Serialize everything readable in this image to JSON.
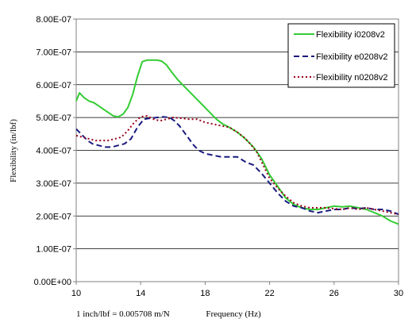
{
  "chart_data": {
    "type": "line",
    "title": "",
    "xlabel": "Frequency (Hz)",
    "ylabel": "Flexibility (in/lbf)",
    "note": "1 inch/lbf = 0.005708 m/N",
    "xlim": [
      10,
      30
    ],
    "ylim": [
      0,
      8e-07
    ],
    "x_ticks": [
      "10",
      "14",
      "18",
      "22",
      "26",
      "30"
    ],
    "x_tick_values": [
      10,
      14,
      18,
      22,
      26,
      30
    ],
    "y_ticks": [
      "0.00E+00",
      "1.00E-07",
      "2.00E-07",
      "3.00E-07",
      "4.00E-07",
      "5.00E-07",
      "6.00E-07",
      "7.00E-07",
      "8.00E-07"
    ],
    "y_tick_values": [
      0,
      1e-07,
      2e-07,
      3e-07,
      4e-07,
      5e-07,
      6e-07,
      7e-07,
      8e-07
    ],
    "grid": "horizontal",
    "legend_position": "top-right",
    "series": [
      {
        "name": "Flexibility i0208v2",
        "color": "#33cc33",
        "style": "solid",
        "x": [
          10,
          10.2,
          10.5,
          10.8,
          11.1,
          11.4,
          11.7,
          12.0,
          12.3,
          12.6,
          12.9,
          13.2,
          13.5,
          13.8,
          14.1,
          14.4,
          14.7,
          15.0,
          15.3,
          15.6,
          15.9,
          16.3,
          16.7,
          17.1,
          17.5,
          17.9,
          18.3,
          18.7,
          19.1,
          19.5,
          20.0,
          20.5,
          21.0,
          21.5,
          22.0,
          22.5,
          23.0,
          23.5,
          24.0,
          24.5,
          25.0,
          25.5,
          26.0,
          26.5,
          27.0,
          27.5,
          28.0,
          28.5,
          29.0,
          29.5,
          30
        ],
        "values": [
          5.5e-07,
          5.75e-07,
          5.6e-07,
          5.5e-07,
          5.45e-07,
          5.35e-07,
          5.25e-07,
          5.15e-07,
          5.05e-07,
          5.02e-07,
          5.1e-07,
          5.3e-07,
          5.7e-07,
          6.25e-07,
          6.7e-07,
          6.75e-07,
          6.75e-07,
          6.75e-07,
          6.72e-07,
          6.6e-07,
          6.4e-07,
          6.15e-07,
          5.95e-07,
          5.75e-07,
          5.55e-07,
          5.35e-07,
          5.15e-07,
          4.95e-07,
          4.8e-07,
          4.7e-07,
          4.55e-07,
          4.35e-07,
          4.1e-07,
          3.75e-07,
          3.25e-07,
          2.9e-07,
          2.55e-07,
          2.35e-07,
          2.25e-07,
          2.2e-07,
          2.2e-07,
          2.25e-07,
          2.3e-07,
          2.28e-07,
          2.3e-07,
          2.25e-07,
          2.2e-07,
          2.1e-07,
          2e-07,
          1.85e-07,
          1.75e-07
        ]
      },
      {
        "name": "Flexibility e0208v2",
        "color": "#1a1a80",
        "style": "dashed",
        "x": [
          10,
          10.3,
          10.7,
          11.0,
          11.4,
          11.8,
          12.2,
          12.6,
          13.0,
          13.4,
          13.8,
          14.2,
          14.6,
          15.0,
          15.4,
          15.8,
          16.1,
          16.4,
          16.7,
          17.0,
          17.3,
          17.6,
          18.0,
          18.5,
          19.0,
          19.5,
          20.0,
          20.5,
          21.0,
          21.5,
          22.0,
          22.5,
          23.0,
          23.5,
          24.0,
          24.5,
          25.0,
          25.5,
          26.0,
          26.5,
          27.0,
          27.5,
          28.0,
          28.5,
          29.0,
          29.5,
          30
        ],
        "values": [
          4.65e-07,
          4.5e-07,
          4.3e-07,
          4.2e-07,
          4.15e-07,
          4.1e-07,
          4.1e-07,
          4.15e-07,
          4.2e-07,
          4.35e-07,
          4.7e-07,
          4.95e-07,
          4.98e-07,
          5e-07,
          5.02e-07,
          5e-07,
          4.9e-07,
          4.75e-07,
          4.55e-07,
          4.35e-07,
          4.15e-07,
          4e-07,
          3.9e-07,
          3.85e-07,
          3.8e-07,
          3.8e-07,
          3.8e-07,
          3.65e-07,
          3.55e-07,
          3.3e-07,
          3e-07,
          2.7e-07,
          2.45e-07,
          2.3e-07,
          2.25e-07,
          2.15e-07,
          2.1e-07,
          2.15e-07,
          2.2e-07,
          2.2e-07,
          2.25e-07,
          2.22e-07,
          2.25e-07,
          2.2e-07,
          2.2e-07,
          2.15e-07,
          2.05e-07
        ]
      },
      {
        "name": "Flexibility n0208v2",
        "color": "#99001a",
        "style": "dotted",
        "x": [
          10,
          10.4,
          10.8,
          11.2,
          11.6,
          12.0,
          12.4,
          12.8,
          13.2,
          13.6,
          14.0,
          14.4,
          14.8,
          15.2,
          15.6,
          16.0,
          16.5,
          17.0,
          17.5,
          18.0,
          18.5,
          19.0,
          19.5,
          20.0,
          20.4,
          20.8,
          21.2,
          21.6,
          22.0,
          22.5,
          23.0,
          23.5,
          24.0,
          24.5,
          25.0,
          25.5,
          26.0,
          26.5,
          27.0,
          27.5,
          28.0,
          28.5,
          29.0,
          29.5,
          30
        ],
        "values": [
          4.45e-07,
          4.4e-07,
          4.35e-07,
          4.3e-07,
          4.3e-07,
          4.3e-07,
          4.35e-07,
          4.4e-07,
          4.6e-07,
          4.85e-07,
          5.02e-07,
          5.05e-07,
          4.95e-07,
          4.9e-07,
          4.95e-07,
          5e-07,
          4.98e-07,
          4.95e-07,
          4.95e-07,
          4.85e-07,
          4.8e-07,
          4.75e-07,
          4.7e-07,
          4.55e-07,
          4.4e-07,
          4.2e-07,
          3.95e-07,
          3.55e-07,
          3.15e-07,
          2.85e-07,
          2.6e-07,
          2.4e-07,
          2.3e-07,
          2.25e-07,
          2.25e-07,
          2.25e-07,
          2.22e-07,
          2.2e-07,
          2.25e-07,
          2.2e-07,
          2.25e-07,
          2.2e-07,
          2.15e-07,
          2.1e-07,
          2.05e-07
        ]
      }
    ]
  }
}
